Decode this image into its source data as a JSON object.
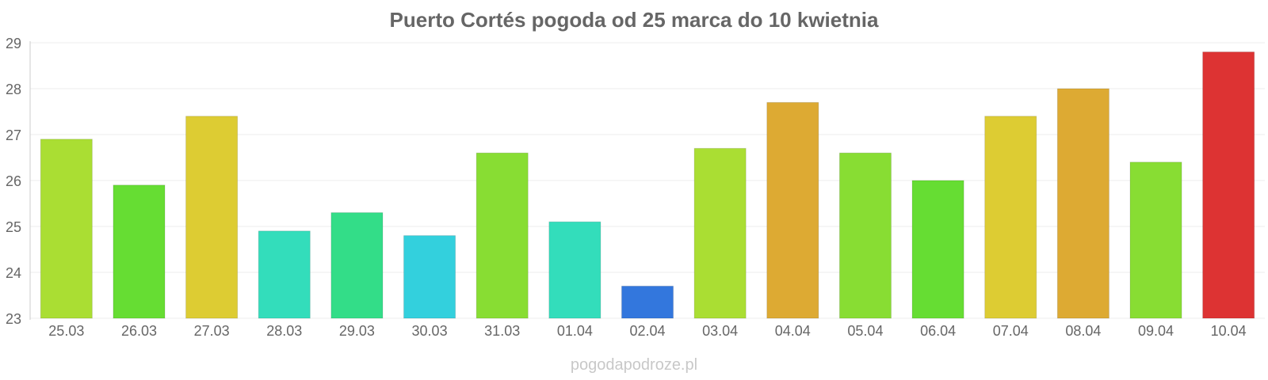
{
  "chart_data": {
    "type": "bar",
    "title": "Puerto Cortés pogoda od 25 marca do 10 kwietnia",
    "xlabel": "",
    "ylabel": "",
    "categories": [
      "25.03",
      "26.03",
      "27.03",
      "28.03",
      "29.03",
      "30.03",
      "31.03",
      "01.04",
      "02.04",
      "03.04",
      "04.04",
      "05.04",
      "06.04",
      "07.04",
      "08.04",
      "09.04",
      "10.04"
    ],
    "values": [
      26.9,
      25.9,
      27.4,
      24.9,
      25.3,
      24.8,
      26.6,
      25.1,
      23.7,
      26.7,
      27.7,
      26.6,
      26.0,
      27.4,
      28.0,
      26.4,
      28.8
    ],
    "colors": [
      "#aade33",
      "#66dd33",
      "#ddcc33",
      "#33ddbb",
      "#33dd88",
      "#33d0dd",
      "#88dd33",
      "#33ddbb",
      "#3377dd",
      "#aade33",
      "#ddaa33",
      "#88dd33",
      "#66dd33",
      "#ddcc33",
      "#ddaa33",
      "#88dd33",
      "#dd3333"
    ],
    "ylim": [
      23,
      29
    ],
    "yticks": [
      23,
      24,
      25,
      26,
      27,
      28,
      29
    ],
    "grid": true,
    "legend": "none"
  },
  "watermark": "pogodapodroze.pl"
}
